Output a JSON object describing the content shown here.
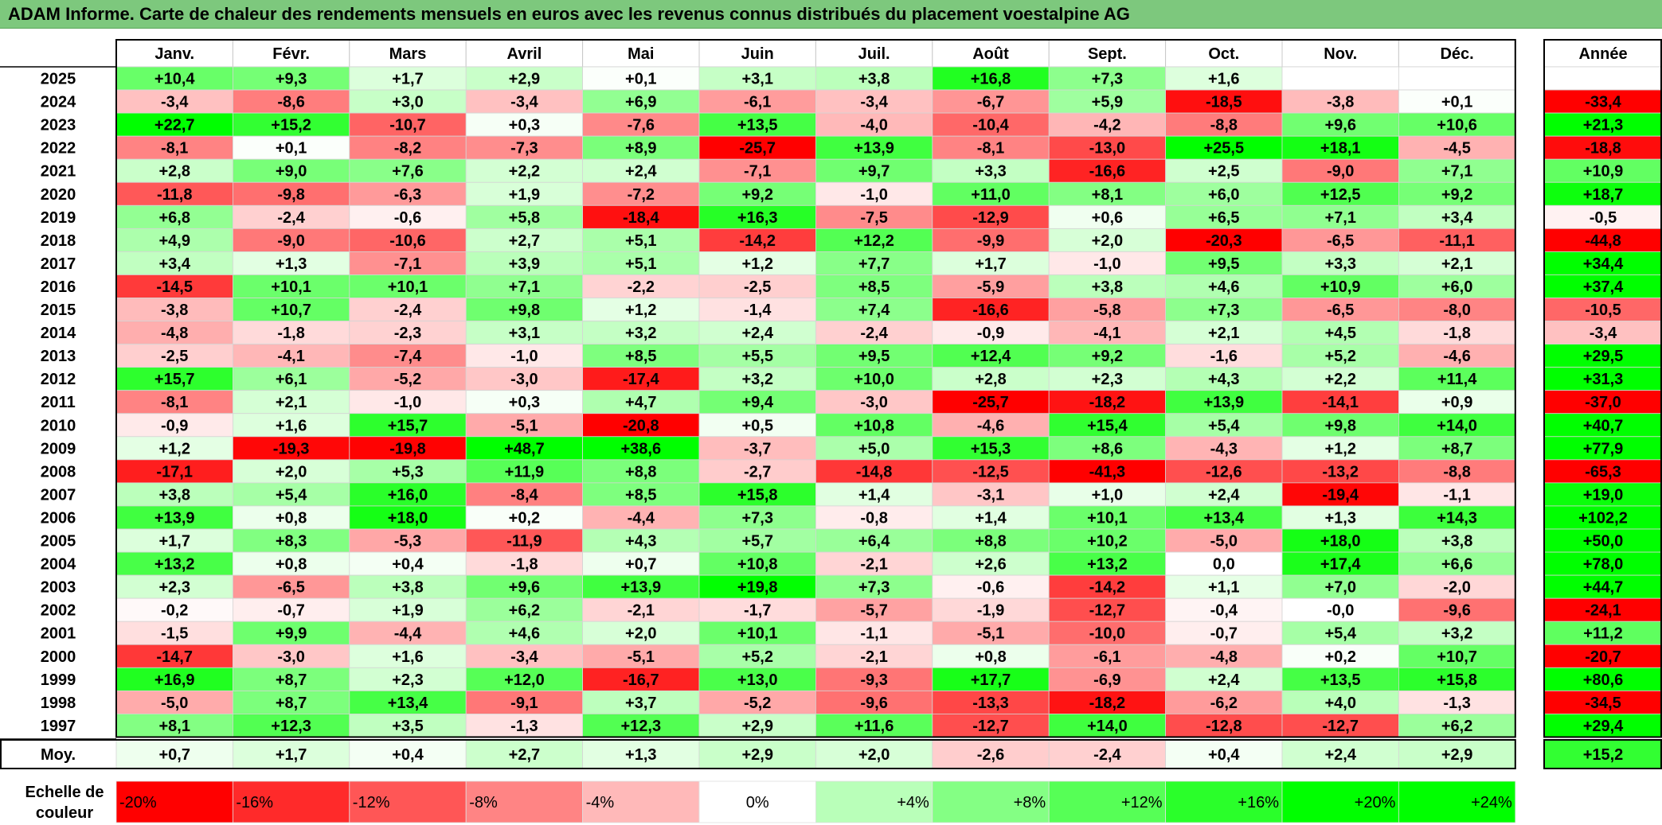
{
  "title": "ADAM Informe. Carte de chaleur des rendements mensuels en euros avec les revenus connus distribués du placement voestalpine AG",
  "chart_data": {
    "type": "heatmap",
    "title": "ADAM Informe. Carte de chaleur des rendements mensuels en euros avec les revenus connus distribués du placement voestalpine AG",
    "months": [
      "Janv.",
      "Févr.",
      "Mars",
      "Avril",
      "Mai",
      "Juin",
      "Juil.",
      "Août",
      "Sept.",
      "Oct.",
      "Nov.",
      "Déc."
    ],
    "year_header": "Année",
    "rows": [
      {
        "year": "2025",
        "values": [
          "+10,4",
          "+9,3",
          "+1,7",
          "+2,9",
          "+0,1",
          "+3,1",
          "+3,8",
          "+16,8",
          "+7,3",
          "+1,6",
          "",
          ""
        ],
        "annual": ""
      },
      {
        "year": "2024",
        "values": [
          "-3,4",
          "-8,6",
          "+3,0",
          "-3,4",
          "+6,9",
          "-6,1",
          "-3,4",
          "-6,7",
          "+5,9",
          "-18,5",
          "-3,8",
          "+0,1"
        ],
        "annual": "-33,4"
      },
      {
        "year": "2023",
        "values": [
          "+22,7",
          "+15,2",
          "-10,7",
          "+0,3",
          "-7,6",
          "+13,5",
          "-4,0",
          "-10,4",
          "-4,2",
          "-8,8",
          "+9,6",
          "+10,6"
        ],
        "annual": "+21,3"
      },
      {
        "year": "2022",
        "values": [
          "-8,1",
          "+0,1",
          "-8,2",
          "-7,3",
          "+8,9",
          "-25,7",
          "+13,9",
          "-8,1",
          "-13,0",
          "+25,5",
          "+18,1",
          "-4,5"
        ],
        "annual": "-18,8"
      },
      {
        "year": "2021",
        "values": [
          "+2,8",
          "+9,0",
          "+7,6",
          "+2,2",
          "+2,4",
          "-7,1",
          "+9,7",
          "+3,3",
          "-16,6",
          "+2,5",
          "-9,0",
          "+7,1"
        ],
        "annual": "+10,9"
      },
      {
        "year": "2020",
        "values": [
          "-11,8",
          "-9,8",
          "-6,3",
          "+1,9",
          "-7,2",
          "+9,2",
          "-1,0",
          "+11,0",
          "+8,1",
          "+6,0",
          "+12,5",
          "+9,2"
        ],
        "annual": "+18,7"
      },
      {
        "year": "2019",
        "values": [
          "+6,8",
          "-2,4",
          "-0,6",
          "+5,8",
          "-18,4",
          "+16,3",
          "-7,5",
          "-12,9",
          "+0,6",
          "+6,5",
          "+7,1",
          "+3,4"
        ],
        "annual": "-0,5"
      },
      {
        "year": "2018",
        "values": [
          "+4,9",
          "-9,0",
          "-10,6",
          "+2,7",
          "+5,1",
          "-14,2",
          "+12,2",
          "-9,9",
          "+2,0",
          "-20,3",
          "-6,5",
          "-11,1"
        ],
        "annual": "-44,8"
      },
      {
        "year": "2017",
        "values": [
          "+3,4",
          "+1,3",
          "-7,1",
          "+3,9",
          "+5,1",
          "+1,2",
          "+7,7",
          "+1,7",
          "-1,0",
          "+9,5",
          "+3,3",
          "+2,1"
        ],
        "annual": "+34,4"
      },
      {
        "year": "2016",
        "values": [
          "-14,5",
          "+10,1",
          "+10,1",
          "+7,1",
          "-2,2",
          "-2,5",
          "+8,5",
          "-5,9",
          "+3,8",
          "+4,6",
          "+10,9",
          "+6,0"
        ],
        "annual": "+37,4"
      },
      {
        "year": "2015",
        "values": [
          "-3,8",
          "+10,7",
          "-2,4",
          "+9,8",
          "+1,2",
          "-1,4",
          "+7,4",
          "-16,6",
          "-5,8",
          "+7,3",
          "-6,5",
          "-8,0"
        ],
        "annual": "-10,5"
      },
      {
        "year": "2014",
        "values": [
          "-4,8",
          "-1,8",
          "-2,3",
          "+3,1",
          "+3,2",
          "+2,4",
          "-2,4",
          "-0,9",
          "-4,1",
          "+2,1",
          "+4,5",
          "-1,8"
        ],
        "annual": "-3,4"
      },
      {
        "year": "2013",
        "values": [
          "-2,5",
          "-4,1",
          "-7,4",
          "-1,0",
          "+8,5",
          "+5,5",
          "+9,5",
          "+12,4",
          "+9,2",
          "-1,6",
          "+5,2",
          "-4,6"
        ],
        "annual": "+29,5"
      },
      {
        "year": "2012",
        "values": [
          "+15,7",
          "+6,1",
          "-5,2",
          "-3,0",
          "-17,4",
          "+3,2",
          "+10,0",
          "+2,8",
          "+2,3",
          "+4,3",
          "+2,2",
          "+11,4"
        ],
        "annual": "+31,3"
      },
      {
        "year": "2011",
        "values": [
          "-8,1",
          "+2,1",
          "-1,0",
          "+0,3",
          "+4,7",
          "+9,4",
          "-3,0",
          "-25,7",
          "-18,2",
          "+13,9",
          "-14,1",
          "+0,9"
        ],
        "annual": "-37,0"
      },
      {
        "year": "2010",
        "values": [
          "-0,9",
          "+1,6",
          "+15,7",
          "-5,1",
          "-20,8",
          "+0,5",
          "+10,8",
          "-4,6",
          "+15,4",
          "+5,4",
          "+9,8",
          "+14,0"
        ],
        "annual": "+40,7"
      },
      {
        "year": "2009",
        "values": [
          "+1,2",
          "-19,3",
          "-19,8",
          "+48,7",
          "+38,6",
          "-3,7",
          "+5,0",
          "+15,3",
          "+8,6",
          "-4,3",
          "+1,2",
          "+8,7"
        ],
        "annual": "+77,9"
      },
      {
        "year": "2008",
        "values": [
          "-17,1",
          "+2,0",
          "+5,3",
          "+11,9",
          "+8,8",
          "-2,7",
          "-14,8",
          "-12,5",
          "-41,3",
          "-12,6",
          "-13,2",
          "-8,8"
        ],
        "annual": "-65,3"
      },
      {
        "year": "2007",
        "values": [
          "+3,8",
          "+5,4",
          "+16,0",
          "-8,4",
          "+8,5",
          "+15,8",
          "+1,4",
          "-3,1",
          "+1,0",
          "+2,4",
          "-19,4",
          "-1,1"
        ],
        "annual": "+19,0"
      },
      {
        "year": "2006",
        "values": [
          "+13,9",
          "+0,8",
          "+18,0",
          "+0,2",
          "-4,4",
          "+7,3",
          "-0,8",
          "+1,4",
          "+10,1",
          "+13,4",
          "+1,3",
          "+14,3"
        ],
        "annual": "+102,2"
      },
      {
        "year": "2005",
        "values": [
          "+1,7",
          "+8,3",
          "-5,3",
          "-11,9",
          "+4,3",
          "+5,7",
          "+6,4",
          "+8,8",
          "+10,2",
          "-5,0",
          "+18,0",
          "+3,8"
        ],
        "annual": "+50,0"
      },
      {
        "year": "2004",
        "values": [
          "+13,2",
          "+0,8",
          "+0,4",
          "-1,8",
          "+0,7",
          "+10,8",
          "-2,1",
          "+2,6",
          "+13,2",
          "0,0",
          "+17,4",
          "+6,6"
        ],
        "annual": "+78,0"
      },
      {
        "year": "2003",
        "values": [
          "+2,3",
          "-6,5",
          "+3,8",
          "+9,6",
          "+13,9",
          "+19,8",
          "+7,3",
          "-0,6",
          "-14,2",
          "+1,1",
          "+7,0",
          "-2,0"
        ],
        "annual": "+44,7"
      },
      {
        "year": "2002",
        "values": [
          "-0,2",
          "-0,7",
          "+1,9",
          "+6,2",
          "-2,1",
          "-1,7",
          "-5,7",
          "-1,9",
          "-12,7",
          "-0,4",
          "-0,0",
          "-9,6"
        ],
        "annual": "-24,1"
      },
      {
        "year": "2001",
        "values": [
          "-1,5",
          "+9,9",
          "-4,4",
          "+4,6",
          "+2,0",
          "+10,1",
          "-1,1",
          "-5,1",
          "-10,0",
          "-0,7",
          "+5,4",
          "+3,2"
        ],
        "annual": "+11,2"
      },
      {
        "year": "2000",
        "values": [
          "-14,7",
          "-3,0",
          "+1,6",
          "-3,4",
          "-5,1",
          "+5,2",
          "-2,1",
          "+0,8",
          "-6,1",
          "-4,8",
          "+0,2",
          "+10,7"
        ],
        "annual": "-20,7"
      },
      {
        "year": "1999",
        "values": [
          "+16,9",
          "+8,7",
          "+2,3",
          "+12,0",
          "-16,7",
          "+13,0",
          "-9,3",
          "+17,7",
          "-6,9",
          "+2,4",
          "+13,5",
          "+15,8"
        ],
        "annual": "+80,6"
      },
      {
        "year": "1998",
        "values": [
          "-5,0",
          "+8,7",
          "+13,4",
          "-9,1",
          "+3,7",
          "-5,2",
          "-9,6",
          "-13,3",
          "-18,2",
          "-6,2",
          "+4,0",
          "-1,3"
        ],
        "annual": "-34,5"
      },
      {
        "year": "1997",
        "values": [
          "+8,1",
          "+12,3",
          "+3,5",
          "-1,3",
          "+12,3",
          "+2,9",
          "+11,6",
          "-12,7",
          "+14,0",
          "-12,8",
          "-12,7",
          "+6,2"
        ],
        "annual": "+29,4"
      }
    ],
    "average_label": "Moy.",
    "average": {
      "values": [
        "+0,7",
        "+1,7",
        "+0,4",
        "+2,7",
        "+1,3",
        "+2,9",
        "+2,0",
        "-2,6",
        "-2,4",
        "+0,4",
        "+2,4",
        "+2,9"
      ],
      "annual": "+15,2"
    },
    "scale_label": [
      "Echelle de",
      "couleur"
    ],
    "scale": [
      "-20%",
      "-16%",
      "-12%",
      "-8%",
      "-4%",
      "0%",
      "+4%",
      "+8%",
      "+12%",
      "+16%",
      "+20%",
      "+24%"
    ],
    "colors": {
      "negative": "#ff0000",
      "neutral": "#ffffff",
      "positive": "#00ff00",
      "title_bg": "#7dc87d"
    }
  }
}
